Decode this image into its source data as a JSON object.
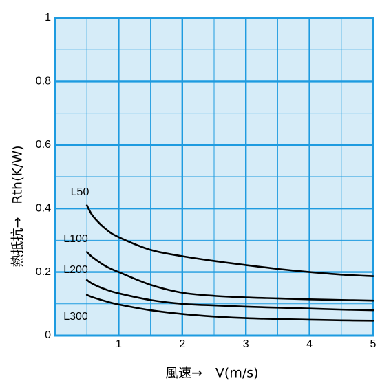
{
  "chart_data": {
    "type": "line",
    "xlabel": "風速→　V(m/s)",
    "ylabel": "熱抵抗→　Rth(K/W)",
    "xlim": [
      0,
      5
    ],
    "ylim": [
      0,
      1
    ],
    "x_ticks": [
      "1",
      "2",
      "3",
      "4",
      "5"
    ],
    "y_ticks": [
      "0",
      "0.2",
      "0.4",
      "0.6",
      "0.8",
      "1"
    ],
    "grid": true,
    "colors": {
      "plot_background": "#d6ecf8",
      "grid": "#1e9be0",
      "line": "#000000"
    },
    "series": [
      {
        "name": "L50",
        "x": [
          0.5,
          0.6,
          0.8,
          1.0,
          1.5,
          2.0,
          2.5,
          3.0,
          3.5,
          4.0,
          4.5,
          5.0
        ],
        "y": [
          0.41,
          0.375,
          0.335,
          0.31,
          0.27,
          0.25,
          0.235,
          0.222,
          0.21,
          0.2,
          0.192,
          0.187
        ]
      },
      {
        "name": "L100",
        "x": [
          0.5,
          0.6,
          0.8,
          1.0,
          1.5,
          2.0,
          2.5,
          3.0,
          3.5,
          4.0,
          4.5,
          5.0
        ],
        "y": [
          0.263,
          0.245,
          0.218,
          0.2,
          0.16,
          0.135,
          0.125,
          0.12,
          0.117,
          0.114,
          0.112,
          0.11
        ]
      },
      {
        "name": "L200",
        "x": [
          0.5,
          0.6,
          0.8,
          1.0,
          1.5,
          2.0,
          2.5,
          3.0,
          3.5,
          4.0,
          4.5,
          5.0
        ],
        "y": [
          0.175,
          0.162,
          0.145,
          0.133,
          0.112,
          0.1,
          0.095,
          0.091,
          0.088,
          0.085,
          0.082,
          0.08
        ]
      },
      {
        "name": "L300",
        "x": [
          0.5,
          0.6,
          0.8,
          1.0,
          1.5,
          2.0,
          2.5,
          3.0,
          3.5,
          4.0,
          4.5,
          5.0
        ],
        "y": [
          0.128,
          0.12,
          0.108,
          0.098,
          0.08,
          0.068,
          0.06,
          0.055,
          0.052,
          0.05,
          0.048,
          0.047
        ]
      }
    ]
  }
}
